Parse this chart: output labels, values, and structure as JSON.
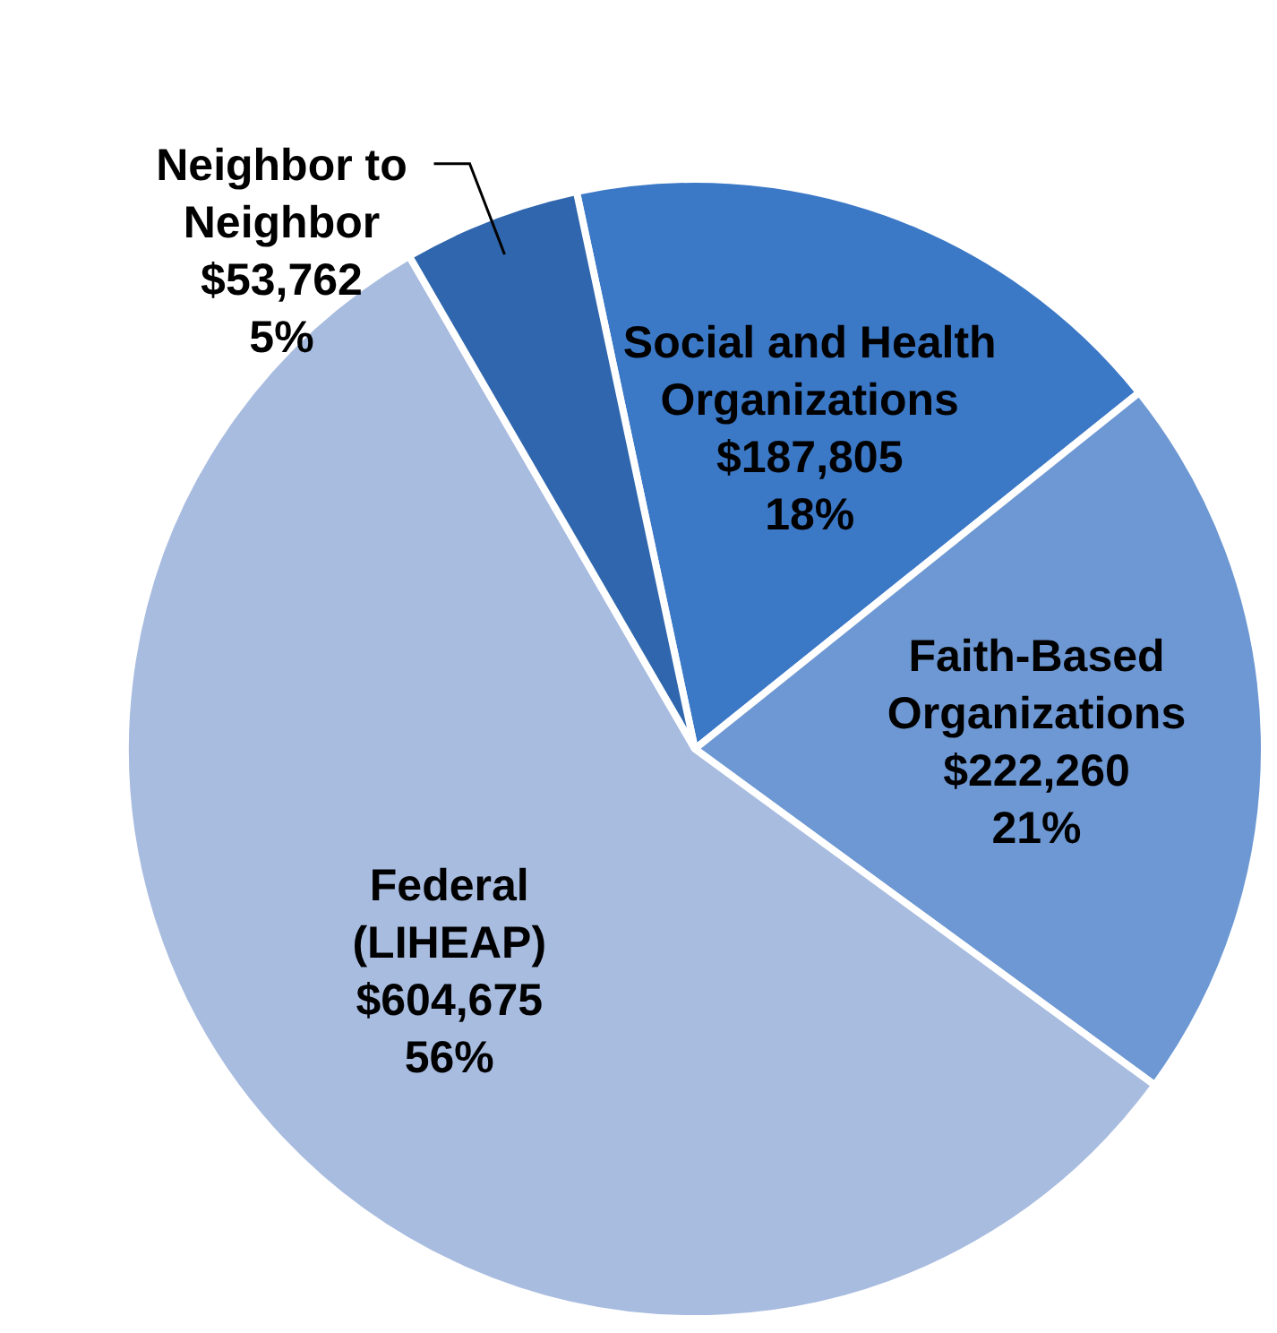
{
  "chart_data": {
    "type": "pie",
    "categories": [
      "Social and Health\nOrganizations",
      "Faith-Based\nOrganizations",
      "Federal\n(LIHEAP)",
      "Neighbor to\nNeighbor"
    ],
    "values": [
      187805,
      222260,
      604675,
      53762
    ],
    "value_labels": [
      "$187,805\n18%",
      "$222,260\n21%",
      "$604,675\n56%",
      "$53,762\n5%"
    ],
    "colors": [
      "#3b78c6",
      "#6d98d3",
      "#a8bce0",
      "#2f66ad"
    ]
  }
}
